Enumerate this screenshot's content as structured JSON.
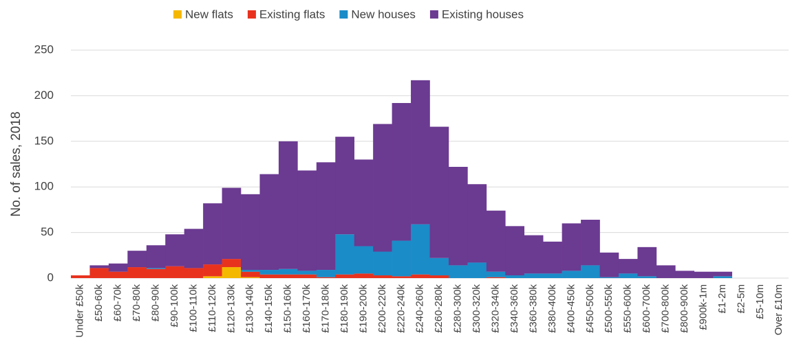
{
  "chart_data": {
    "type": "stacked_bar",
    "y_label": "No. of sales, 2018",
    "categories": [
      "Under £50k",
      "£50-60k",
      "£60-70k",
      "£70-80k",
      "£80-90k",
      "£90-100k",
      "£100-110k",
      "£110-120k",
      "£120-130k",
      "£130-140k",
      "£140-150k",
      "£150-160k",
      "£160-170k",
      "£170-180k",
      "£180-190k",
      "£190-200k",
      "£200-220k",
      "£220-240k",
      "£240-260k",
      "£260-280k",
      "£280-300k",
      "£300-320k",
      "£320-340k",
      "£340-360k",
      "£360-380k",
      "£380-400k",
      "£400-450k",
      "£450-500k",
      "£500-550k",
      "£550-600k",
      "£600-700k",
      "£700-800k",
      "£800-900k",
      "£900k-1m",
      "£1-2m",
      "£2-5m",
      "£5-10m",
      "Over £10m"
    ],
    "series": [
      {
        "name": "New flats",
        "color": "#f5b800",
        "values": [
          0,
          0,
          0,
          0,
          0,
          0,
          0,
          2,
          12,
          1,
          0,
          0,
          0,
          0,
          0,
          0,
          0,
          0,
          0,
          0,
          0,
          0,
          0,
          0,
          0,
          0,
          0,
          0,
          0,
          0,
          0,
          0,
          0,
          0,
          0,
          0,
          0,
          0
        ]
      },
      {
        "name": "Existing flats",
        "color": "#e8321e",
        "values": [
          3,
          11,
          7,
          12,
          10,
          13,
          11,
          13,
          9,
          6,
          4,
          4,
          4,
          1,
          4,
          5,
          3,
          2,
          4,
          3,
          0,
          0,
          1,
          0,
          0,
          0,
          0,
          0,
          0,
          0,
          0,
          0,
          0,
          0,
          0,
          0,
          0,
          0
        ]
      },
      {
        "name": "New houses",
        "color": "#1a8cc8",
        "values": [
          0,
          0,
          0,
          0,
          1,
          0,
          0,
          0,
          0,
          2,
          5,
          6,
          4,
          8,
          44,
          30,
          26,
          39,
          55,
          19,
          14,
          17,
          6,
          3,
          5,
          5,
          8,
          14,
          1,
          5,
          2,
          0,
          0,
          0,
          2,
          0,
          0,
          0
        ]
      },
      {
        "name": "Existing houses",
        "color": "#6b3a91",
        "values": [
          0,
          3,
          9,
          18,
          25,
          35,
          43,
          67,
          78,
          83,
          105,
          140,
          110,
          118,
          107,
          95,
          140,
          151,
          158,
          144,
          108,
          86,
          67,
          54,
          42,
          35,
          52,
          50,
          27,
          16,
          32,
          14,
          8,
          7,
          5,
          0,
          0,
          0
        ]
      }
    ],
    "ylim": [
      0,
      250
    ],
    "yticks": [
      0,
      50,
      100,
      150,
      200,
      250
    ],
    "grid": true,
    "legend": "top"
  }
}
